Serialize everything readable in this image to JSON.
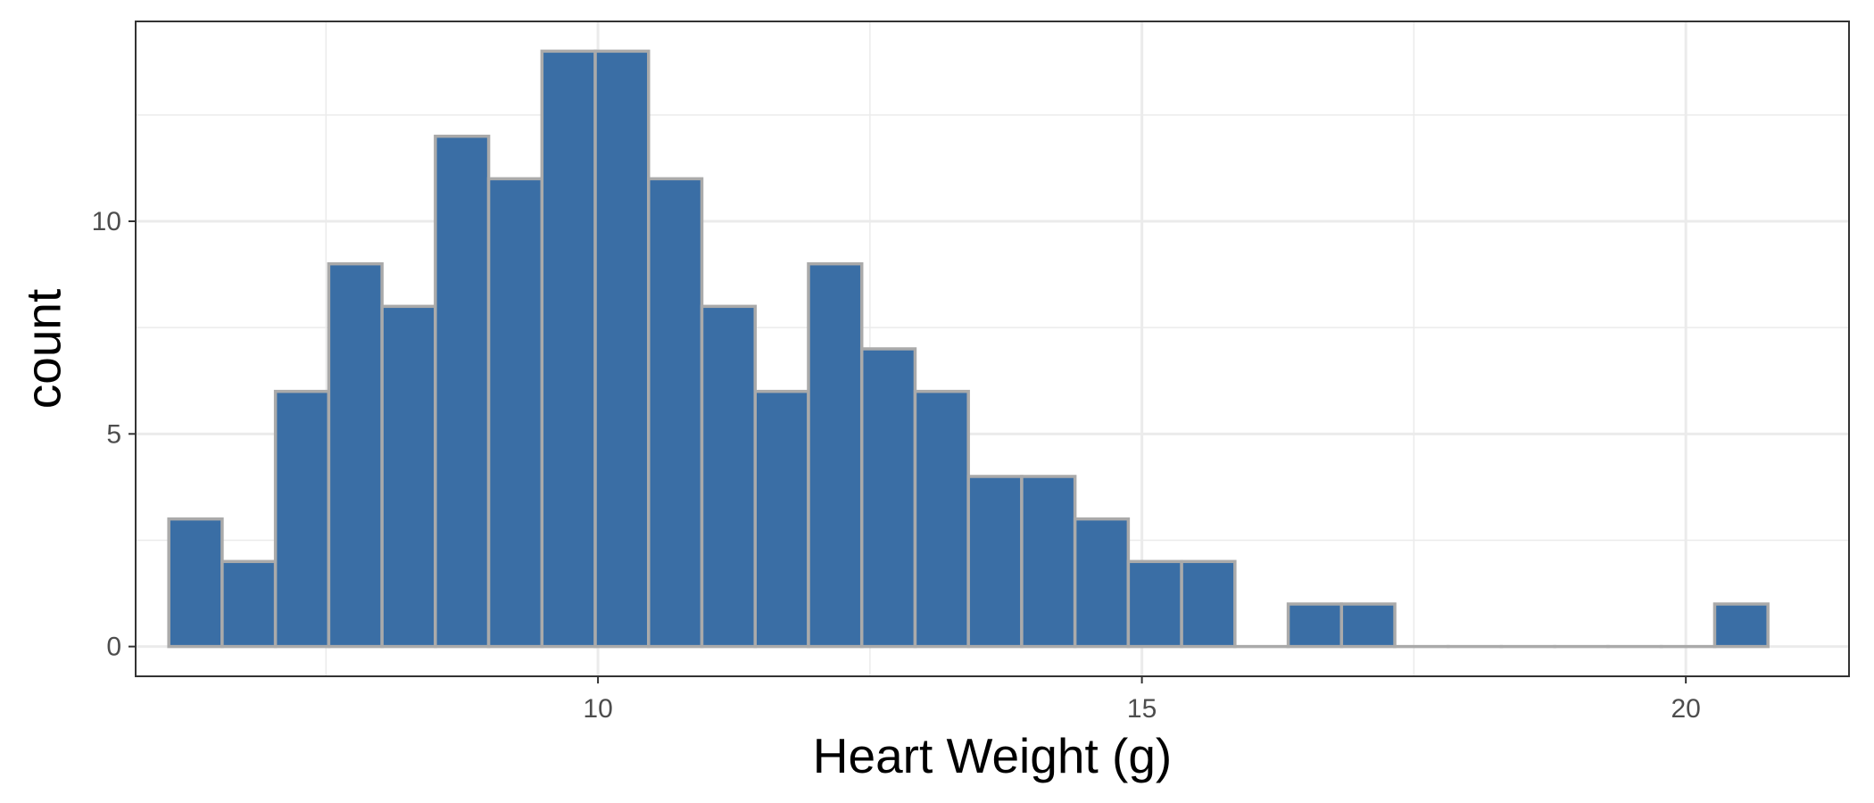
{
  "chart_data": {
    "type": "histogram",
    "title": "",
    "xlabel": "Heart Weight (g)",
    "ylabel": "count",
    "xlim": [
      5.75,
      21.5
    ],
    "ylim": [
      -0.7,
      14.7
    ],
    "grid": true,
    "bin_width": 0.49,
    "bins": [
      {
        "x": 6.3,
        "count": 3
      },
      {
        "x": 6.79,
        "count": 2
      },
      {
        "x": 7.28,
        "count": 6
      },
      {
        "x": 7.77,
        "count": 9
      },
      {
        "x": 8.26,
        "count": 8
      },
      {
        "x": 8.75,
        "count": 12
      },
      {
        "x": 9.24,
        "count": 11
      },
      {
        "x": 9.73,
        "count": 14
      },
      {
        "x": 10.22,
        "count": 14
      },
      {
        "x": 10.71,
        "count": 11
      },
      {
        "x": 11.2,
        "count": 8
      },
      {
        "x": 11.69,
        "count": 6
      },
      {
        "x": 12.18,
        "count": 9
      },
      {
        "x": 12.67,
        "count": 7
      },
      {
        "x": 13.16,
        "count": 6
      },
      {
        "x": 13.65,
        "count": 4
      },
      {
        "x": 14.14,
        "count": 4
      },
      {
        "x": 14.63,
        "count": 3
      },
      {
        "x": 15.12,
        "count": 2
      },
      {
        "x": 15.61,
        "count": 2
      },
      {
        "x": 16.1,
        "count": 0
      },
      {
        "x": 16.59,
        "count": 1
      },
      {
        "x": 17.08,
        "count": 1
      },
      {
        "x": 17.57,
        "count": 0
      },
      {
        "x": 18.06,
        "count": 0
      },
      {
        "x": 18.55,
        "count": 0
      },
      {
        "x": 19.04,
        "count": 0
      },
      {
        "x": 19.53,
        "count": 0
      },
      {
        "x": 20.02,
        "count": 0
      },
      {
        "x": 20.51,
        "count": 1
      }
    ],
    "x_ticks": [
      10,
      15,
      20
    ],
    "x_tick_labels": [
      "10",
      "15",
      "20"
    ],
    "x_minor": [
      7.5,
      12.5,
      17.5
    ],
    "y_ticks": [
      0,
      5,
      10
    ],
    "y_tick_labels": [
      "0",
      "5",
      "10"
    ],
    "y_minor": [
      2.5,
      7.5,
      12.5
    ],
    "colors": {
      "bar_fill": "#3a6ea5",
      "bar_stroke": "#aaaaaa",
      "grid": "#ebebeb",
      "panel_border": "#333333",
      "tick_text": "#4d4d4d"
    }
  }
}
